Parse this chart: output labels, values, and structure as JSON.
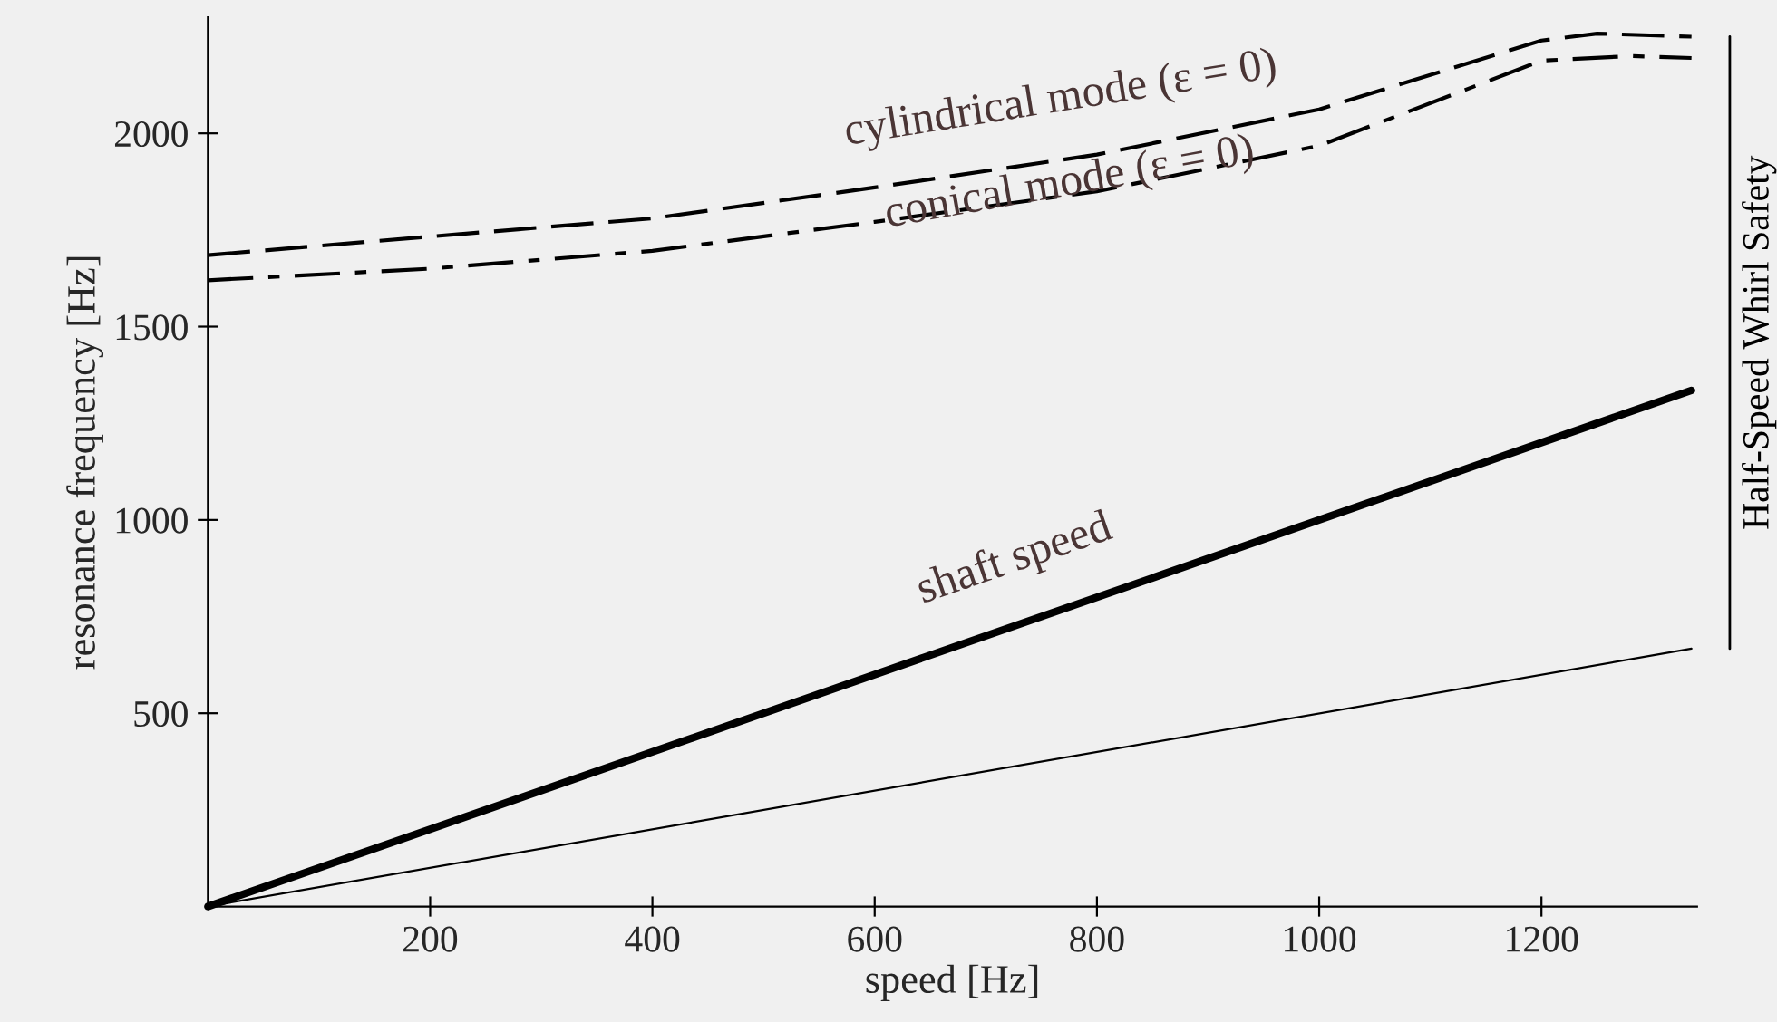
{
  "chart_data": {
    "type": "line",
    "xlabel": "speed [Hz]",
    "ylabel": "resonance frequency [Hz]",
    "xlim": [
      0,
      1340
    ],
    "ylim": [
      0,
      2300
    ],
    "xticks": [
      200,
      400,
      600,
      800,
      1000,
      1200
    ],
    "yticks": [
      500,
      1000,
      1500,
      2000
    ],
    "grid": false,
    "legend": false,
    "marker": "none",
    "series": [
      {
        "color": "#000000",
        "line_style": "dashed",
        "x": [
          0,
          200,
          400,
          600,
          800,
          1000,
          1200,
          1250,
          1335
        ],
        "values": [
          1685,
          1733,
          1780,
          1860,
          1945,
          2062,
          2240,
          2258,
          2250
        ]
      },
      {
        "color": "#000000",
        "line_style": "dashdot",
        "x": [
          0,
          200,
          400,
          600,
          800,
          1000,
          1200,
          1280,
          1335
        ],
        "values": [
          1620,
          1650,
          1696,
          1771,
          1850,
          1968,
          2188,
          2200,
          2195
        ]
      },
      {
        "color": "#000000",
        "line_style": "solid",
        "x": [
          0,
          1335
        ],
        "values": [
          0,
          1335
        ]
      },
      {
        "color": "#000000",
        "line_style": "solid",
        "x": [
          0,
          1335
        ],
        "values": [
          0,
          667
        ]
      }
    ],
    "annotations": [
      "cylindrical mode (ε = 0)",
      "conical mode (ε = 0)",
      "shaft speed",
      "Half-Speed Whirl Safety"
    ]
  }
}
